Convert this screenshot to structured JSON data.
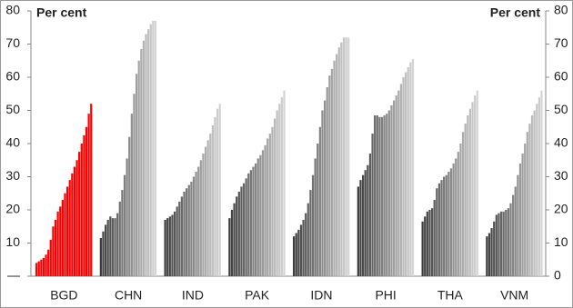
{
  "chart_data": {
    "type": "bar",
    "ylabel": "Per cent",
    "y2label": "Per cent",
    "categories": [
      "BGD",
      "CHN",
      "IND",
      "PAK",
      "IDN",
      "PHI",
      "THA",
      "VNM"
    ],
    "values": [
      [
        4,
        4.5,
        5,
        5.5,
        6.5,
        8,
        11,
        15,
        17,
        19.5,
        21,
        23,
        25,
        27,
        29,
        31,
        33,
        35,
        37.5,
        40,
        42.5,
        45,
        49,
        52
      ],
      [
        11.5,
        13.5,
        15.5,
        17,
        18,
        17.5,
        17.5,
        19,
        22.5,
        26,
        30.5,
        35.5,
        42,
        49,
        55,
        61,
        65,
        68.5,
        71,
        73,
        74.5,
        76,
        77,
        77
      ],
      [
        17,
        17.5,
        18,
        18.5,
        19.5,
        21,
        22.5,
        24,
        25.5,
        26.5,
        27.5,
        28.5,
        30,
        31.5,
        33,
        35,
        37,
        39,
        41,
        43,
        45.5,
        48,
        50.5,
        52
      ],
      [
        17.5,
        20,
        22,
        24,
        25.5,
        27,
        28,
        29.5,
        31,
        32,
        33,
        34,
        35.5,
        36.5,
        38,
        39.5,
        41.5,
        43,
        45,
        47.5,
        50,
        52,
        54,
        56
      ],
      [
        12,
        13,
        14,
        15.5,
        17,
        19,
        22,
        26,
        30.5,
        35.5,
        40,
        45,
        50,
        53,
        57,
        60.5,
        62.5,
        65,
        67,
        69,
        70.5,
        72,
        72,
        72
      ],
      [
        27,
        29,
        30.5,
        32,
        33.5,
        37,
        43,
        48.5,
        48.5,
        48,
        48,
        48.5,
        49,
        50,
        51.5,
        53,
        54.5,
        56,
        58,
        60,
        61.5,
        63,
        64.5,
        65.5
      ],
      [
        16.5,
        18,
        19.5,
        20,
        20.5,
        23,
        26.5,
        28,
        29,
        30,
        30.5,
        31.5,
        32.5,
        34,
        35.5,
        37.5,
        40,
        43.5,
        46,
        48.5,
        50.5,
        52.5,
        54.5,
        56
      ],
      [
        12,
        13,
        14.5,
        16.5,
        18.5,
        19,
        19.5,
        19.5,
        20,
        20.5,
        22,
        24.5,
        27,
        30.5,
        34,
        37,
        40,
        43.5,
        46,
        48.5,
        50,
        52,
        54,
        56
      ]
    ],
    "colors": [
      "#ff0000",
      [
        "#3c3c3c",
        "#d4d4d4"
      ],
      [
        "#3c3c3c",
        "#d4d4d4"
      ],
      [
        "#3c3c3c",
        "#d4d4d4"
      ],
      [
        "#3c3c3c",
        "#d4d4d4"
      ],
      [
        "#3c3c3c",
        "#d4d4d4"
      ],
      [
        "#3c3c3c",
        "#d4d4d4"
      ],
      [
        "#3c3c3c",
        "#d4d4d4"
      ]
    ],
    "ylim": [
      0,
      80
    ],
    "yticks": [
      {
        "value": 0,
        "label": "—"
      },
      10,
      20,
      30,
      40,
      50,
      60,
      70,
      80
    ],
    "y2lim": [
      0,
      80
    ],
    "y2ticks": [
      0,
      10,
      20,
      30,
      40,
      50,
      60,
      70,
      80
    ]
  }
}
